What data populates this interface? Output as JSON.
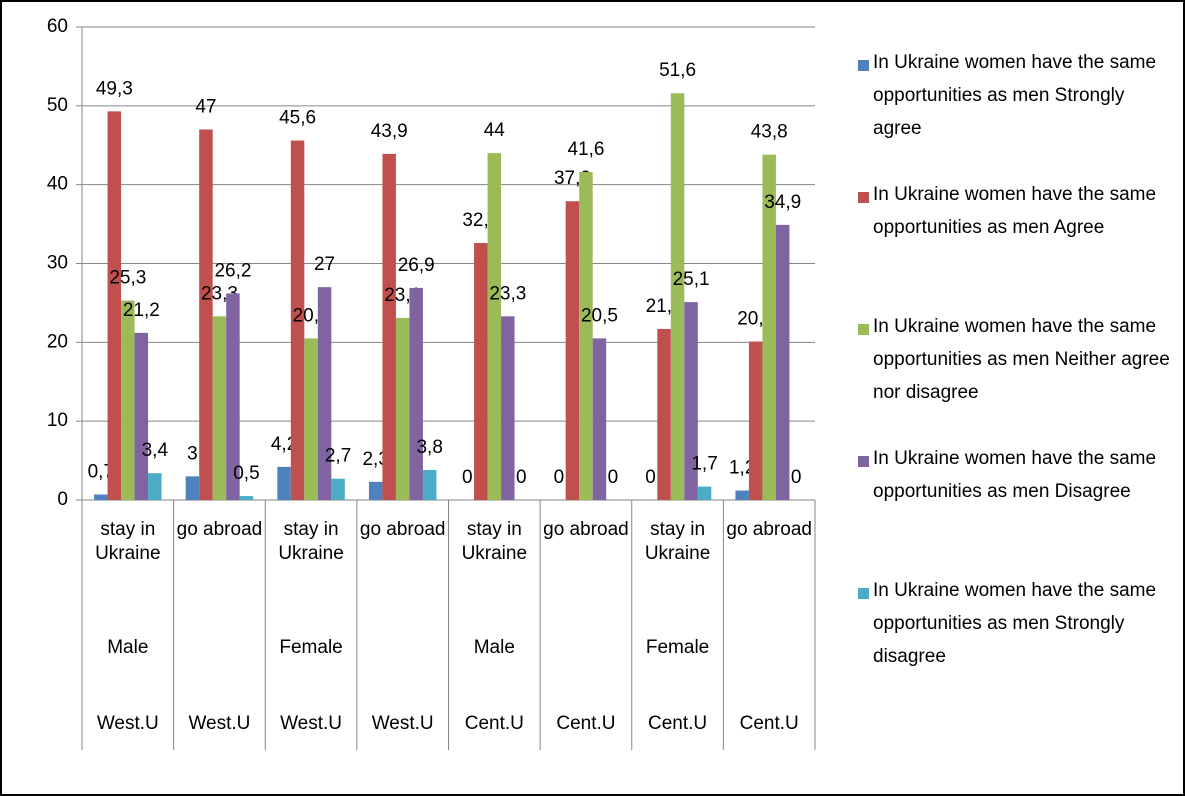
{
  "chart_data": {
    "type": "bar",
    "categories": [
      "stay in Ukraine",
      "go abroad",
      "stay in Ukraine",
      "go abroad",
      "stay in Ukraine",
      "go abroad",
      "stay in Ukraine",
      "go abroad"
    ],
    "categories_2": [
      "Male",
      null,
      "Female",
      null,
      "Male",
      null,
      "Female",
      null
    ],
    "categories_3": [
      "West.U",
      "West.U",
      "West.U",
      "West.U",
      "Cent.U",
      "Cent.U",
      "Cent.U",
      "Cent.U"
    ],
    "series": [
      {
        "name": "In Ukraine women have the same opportunities as men Strongly agree",
        "color": "#4f81bd",
        "values": [
          0.7,
          3,
          4.2,
          2.3,
          0,
          0,
          0,
          1.2
        ],
        "value_labels": [
          "0,7",
          "3",
          "4,2",
          "2,3",
          "0",
          "0",
          "0",
          "1,2"
        ]
      },
      {
        "name": "In Ukraine women have the same opportunities as men Agree",
        "color": "#c0504d",
        "values": [
          49.3,
          47,
          45.6,
          43.9,
          32.6,
          37.9,
          21.7,
          20.1
        ],
        "value_labels": [
          "49,3",
          "47",
          "45,6",
          "43,9",
          "32,6",
          "37,9",
          "21,7",
          "20,1"
        ]
      },
      {
        "name": "In Ukraine women have the same opportunities as men Neither agree nor disagree",
        "color": "#9bbb59",
        "values": [
          25.3,
          23.3,
          20.5,
          23.1,
          44,
          41.6,
          51.6,
          43.8
        ],
        "value_labels": [
          "25,3",
          "23,3",
          "20,5",
          "23,1",
          "44",
          "41,6",
          "51,6",
          "43,8"
        ]
      },
      {
        "name": "In Ukraine women have the same opportunities as men Disagree",
        "color": "#8064a2",
        "values": [
          21.2,
          26.2,
          27,
          26.9,
          23.3,
          20.5,
          25.1,
          34.9
        ],
        "value_labels": [
          "21,2",
          "26,2",
          "27",
          "26,9",
          "23,3",
          "20,5",
          "25,1",
          "34,9"
        ]
      },
      {
        "name": "In Ukraine women have the same opportunities as men Strongly disagree",
        "color": "#4bacc6",
        "values": [
          3.4,
          0.5,
          2.7,
          3.8,
          0,
          0,
          1.7,
          0
        ],
        "value_labels": [
          "3,4",
          "0,5",
          "2,7",
          "3,8",
          "0",
          "0",
          "1,7",
          "0"
        ]
      }
    ],
    "ylim": [
      0,
      60
    ],
    "yticks": [
      0,
      10,
      20,
      30,
      40,
      50,
      60
    ],
    "grid": true,
    "legend": "right"
  }
}
